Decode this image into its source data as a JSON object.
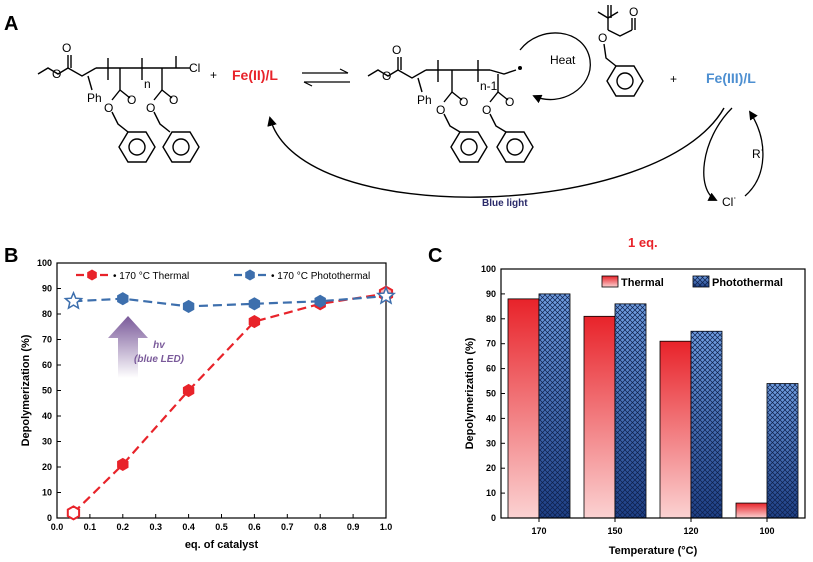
{
  "panel_a": {
    "letter": "A",
    "reactant_labels": {
      "ph": "Ph",
      "n": "n",
      "cl": "Cl"
    },
    "catalyst_fe2": "Fe(II)/L",
    "catalyst_fe3": "Fe(III)/L",
    "product_labels": {
      "ph": "Ph",
      "n_minus_1": "n-1"
    },
    "heat_label": "Heat",
    "radical_label": "R˙",
    "chloride_label": "Cl˙",
    "blue_light_label": "Blue light",
    "plus_sign": "+",
    "colors": {
      "fe2": "#e8232a",
      "fe3": "#4d8fd1",
      "blue_light": "#2a2a6a"
    }
  },
  "panel_b": {
    "letter": "B",
    "annotation": {
      "line1": "hv",
      "line2": "(blue LED)"
    },
    "colors": {
      "thermal": "#e8232a",
      "photothermal": "#3d6fad",
      "arrow": "#7a5a9a"
    }
  },
  "panel_c": {
    "letter": "C",
    "annotation": "1 eq.",
    "colors": {
      "thermal": "#e8232a",
      "photothermal": "#2f63b6",
      "annotation": "#e8232a"
    }
  },
  "chart_data": [
    {
      "type": "line",
      "xlabel": "eq. of catalyst",
      "ylabel": "Depolymerization (%)",
      "xlim": [
        0.0,
        1.0
      ],
      "ylim": [
        0,
        100
      ],
      "xticks": [
        "0.0",
        "0.1",
        "0.2",
        "0.3",
        "0.4",
        "0.5",
        "0.6",
        "0.7",
        "0.8",
        "0.9",
        "1.0"
      ],
      "yticks": [
        "0",
        "10",
        "20",
        "30",
        "40",
        "50",
        "60",
        "70",
        "80",
        "90",
        "100"
      ],
      "legend_position": "top",
      "series": [
        {
          "name": "170 °C Thermal",
          "x": [
            0.05,
            0.2,
            0.4,
            0.6,
            0.8,
            1.0
          ],
          "y": [
            2,
            21,
            50,
            77,
            84,
            88
          ]
        },
        {
          "name": "170 °C Photothermal",
          "x": [
            0.05,
            0.2,
            0.4,
            0.6,
            0.8,
            1.0
          ],
          "y": [
            85,
            86,
            83,
            84,
            85,
            87
          ]
        }
      ]
    },
    {
      "type": "bar",
      "xlabel": "Temperature (°C)",
      "ylabel": "Depolymerization (%)",
      "ylim": [
        0,
        100
      ],
      "yticks": [
        "0",
        "10",
        "20",
        "30",
        "40",
        "50",
        "60",
        "70",
        "80",
        "90",
        "100"
      ],
      "categories": [
        "170",
        "150",
        "120",
        "100"
      ],
      "legend_position": "top-right",
      "series": [
        {
          "name": "Thermal",
          "values": [
            88,
            81,
            71,
            6
          ]
        },
        {
          "name": "Photothermal",
          "values": [
            90,
            86,
            75,
            54
          ]
        }
      ]
    }
  ]
}
